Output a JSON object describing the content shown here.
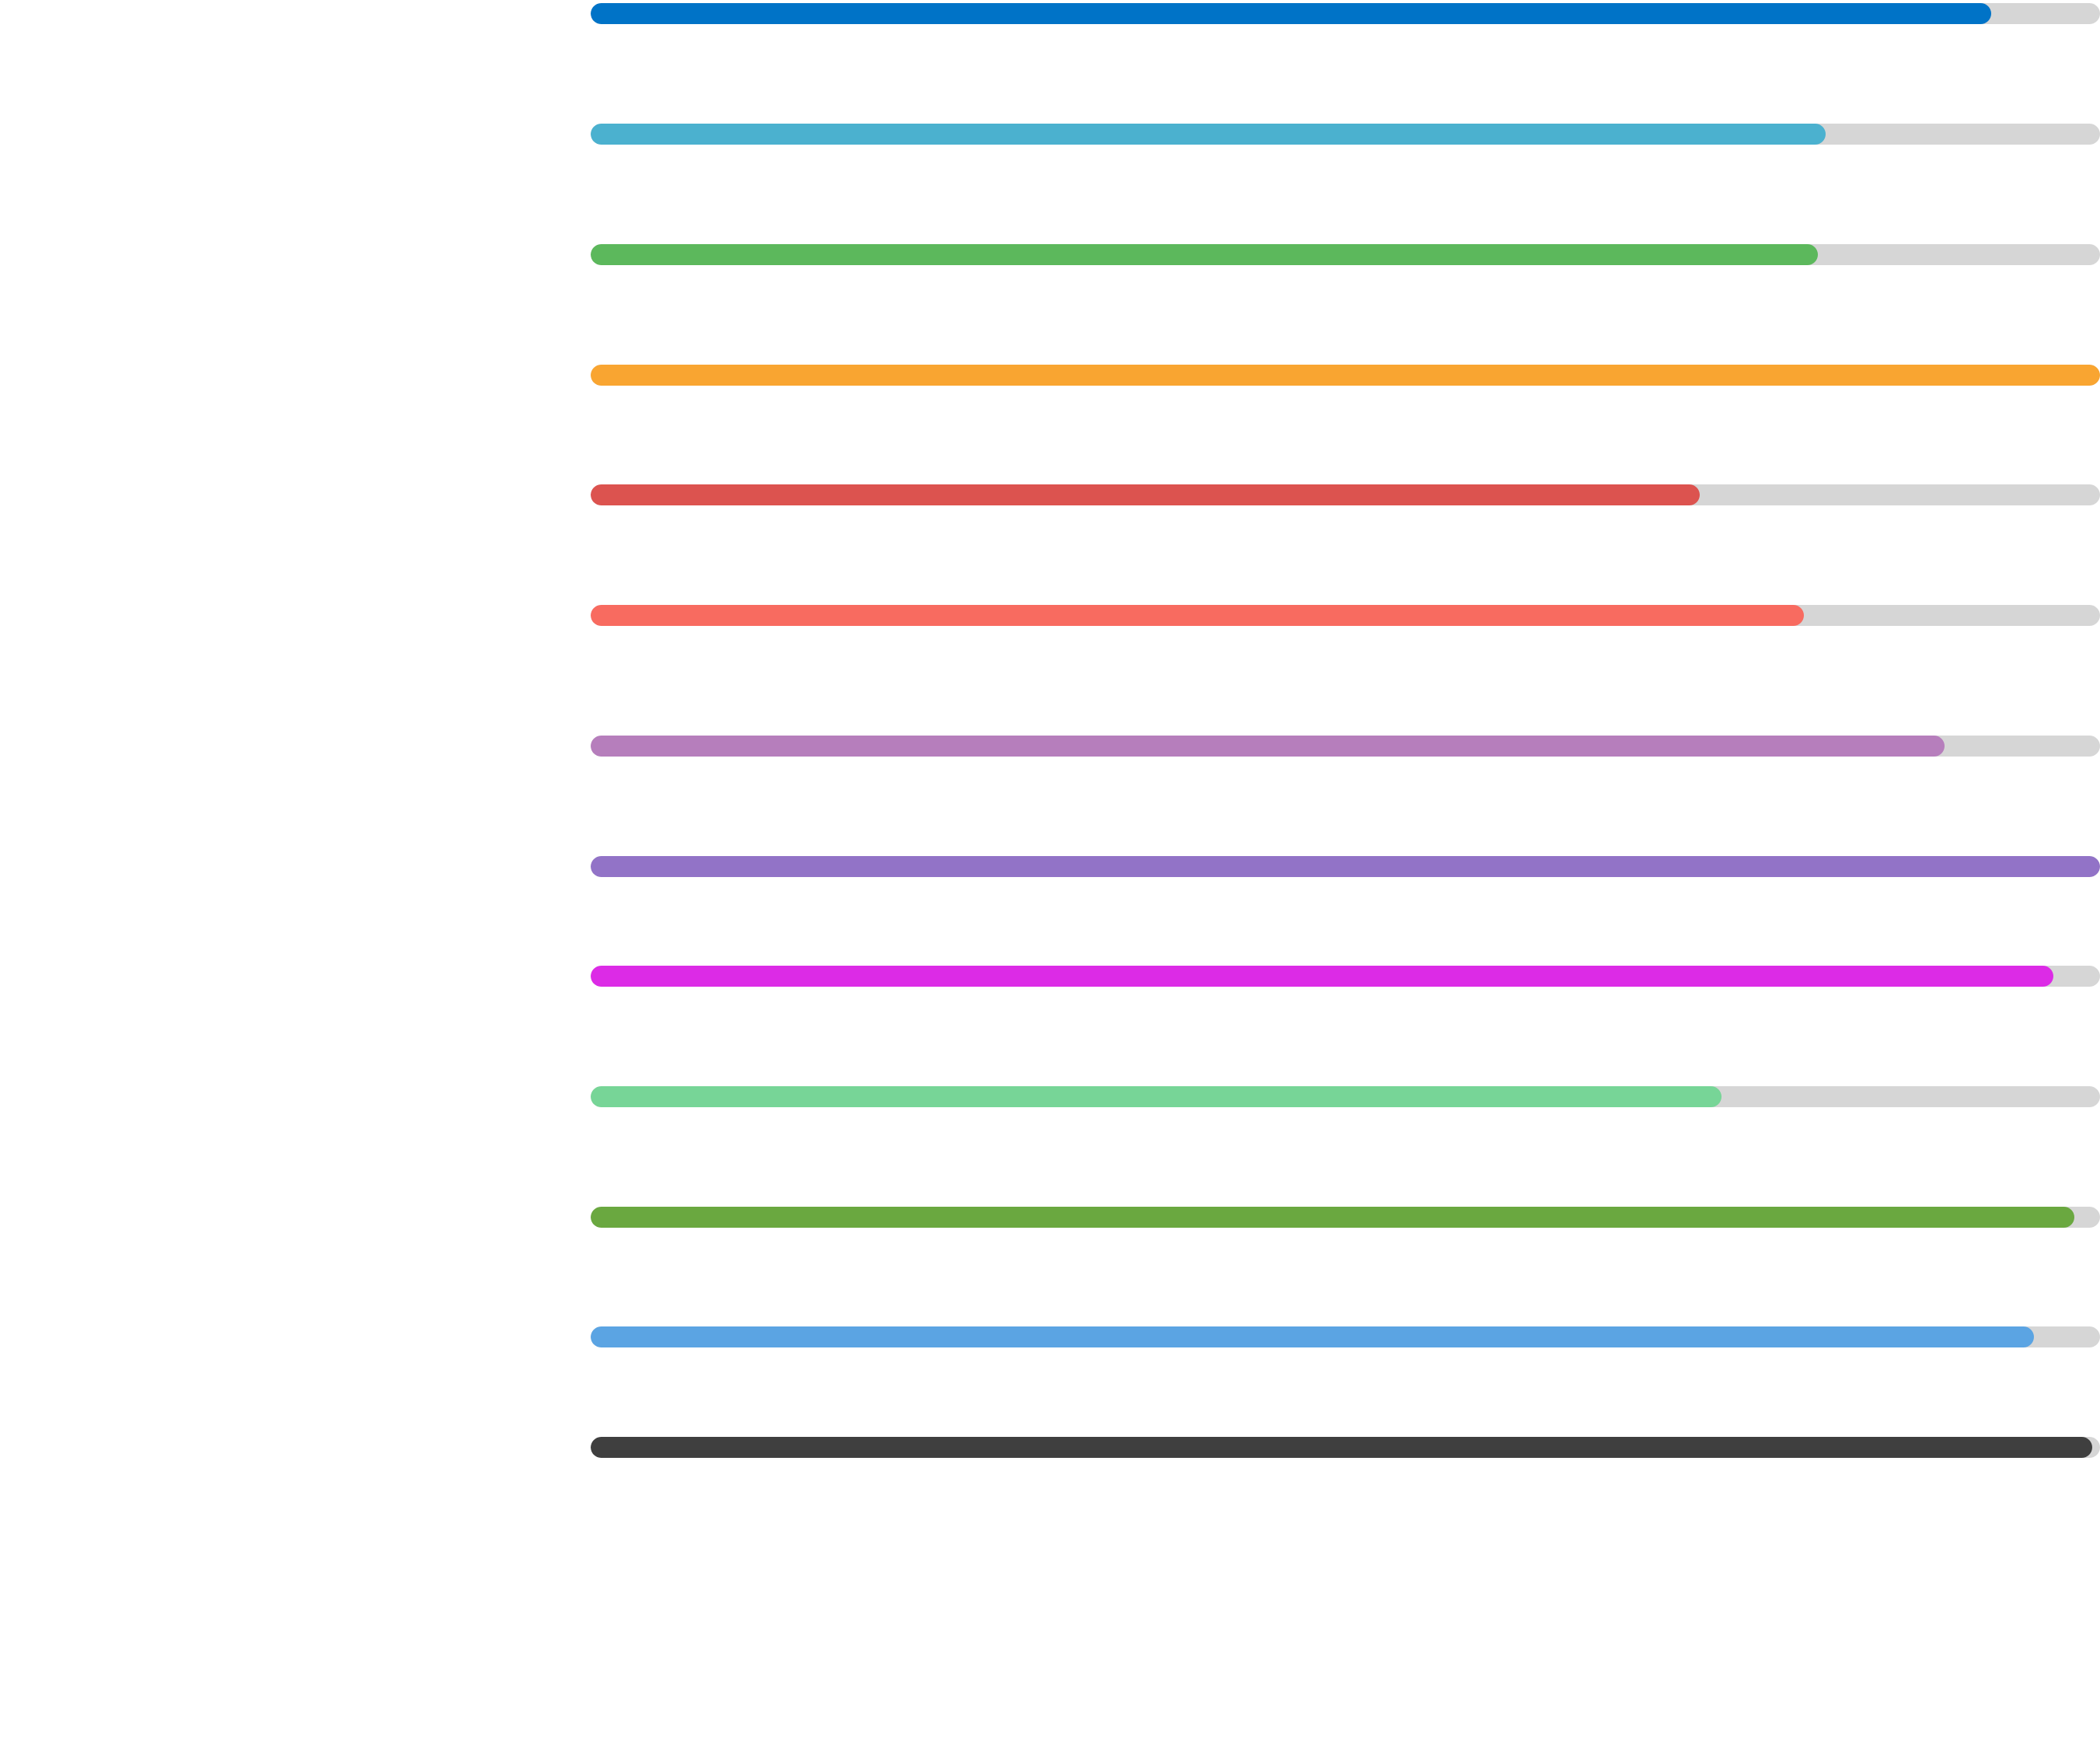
{
  "progress_bars": {
    "track_color": "#d6d6d6",
    "items": [
      {
        "value": 0.928,
        "color": "#0073c7"
      },
      {
        "value": 0.818,
        "color": "#4bb1cf"
      },
      {
        "value": 0.813,
        "color": "#5cb85c"
      },
      {
        "value": 1.0,
        "color": "#f9a531"
      },
      {
        "value": 0.735,
        "color": "#dc534f"
      },
      {
        "value": 0.804,
        "color": "#f86b60"
      },
      {
        "value": 0.897,
        "color": "#b67ebc"
      },
      {
        "value": 1.0,
        "color": "#9273c7"
      },
      {
        "value": 0.969,
        "color": "#dc2be6"
      },
      {
        "value": 0.749,
        "color": "#77d597"
      },
      {
        "value": 0.983,
        "color": "#6aa840"
      },
      {
        "value": 0.956,
        "color": "#5ba4e3"
      },
      {
        "value": 0.995,
        "color": "#3f3f3f"
      }
    ]
  }
}
